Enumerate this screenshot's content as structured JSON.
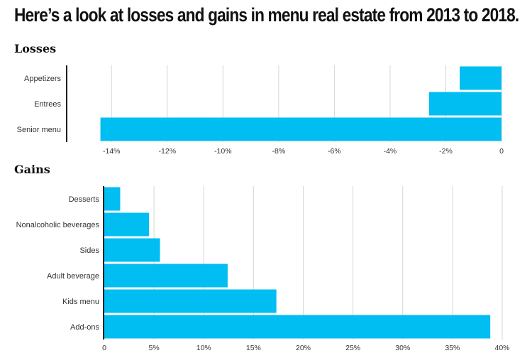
{
  "title": "Here’s a look at losses and gains in menu real estate from 2013 to 2018.",
  "colors": {
    "bar": "#00bdf2",
    "grid": "#d6d6d6",
    "axis": "#222222"
  },
  "chart_data": [
    {
      "type": "bar",
      "orientation": "horizontal",
      "title": "Losses",
      "categories": [
        "Appetizers",
        "Entrees",
        "Senior menu"
      ],
      "values": [
        -1.5,
        -2.6,
        -14.4
      ],
      "xlim": [
        -15,
        0
      ],
      "ticks": [
        -14,
        -12,
        -10,
        -8,
        -6,
        -4,
        -2,
        0
      ],
      "tick_labels": [
        "-14%",
        "-12%",
        "-10%",
        "-8%",
        "-6%",
        "-4%",
        "-2%",
        "0"
      ],
      "grid": true
    },
    {
      "type": "bar",
      "orientation": "horizontal",
      "title": "Gains",
      "categories": [
        "Desserts",
        "Nonalcoholic beverages",
        "Sides",
        "Adult beverage",
        "Kids menu",
        "Add-ons"
      ],
      "values": [
        1.6,
        4.5,
        5.6,
        12.4,
        17.3,
        38.8
      ],
      "xlim": [
        0,
        40
      ],
      "ticks": [
        0,
        5,
        10,
        15,
        20,
        25,
        30,
        35,
        40
      ],
      "tick_labels": [
        "0",
        "5%",
        "10%",
        "15%",
        "20%",
        "25%",
        "30%",
        "35%",
        "40%"
      ],
      "grid": true
    }
  ]
}
